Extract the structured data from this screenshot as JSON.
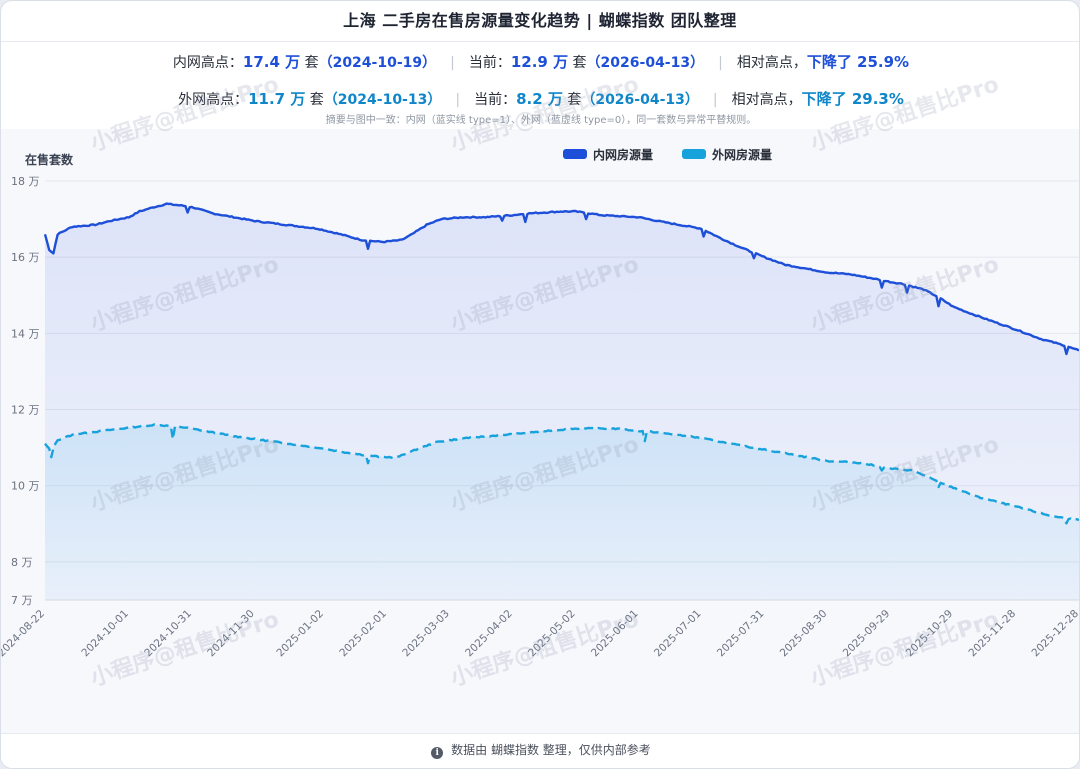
{
  "title": "上海 二手房在售房源量变化趋势 | 蝴蝶指数 团队整理",
  "summary": {
    "inner": {
      "high_label": "内网高点：",
      "high_value": "17.4 万",
      "unit": "套",
      "high_date": "（2024-10-19）",
      "current_label": "当前：",
      "current_value": "12.9 万",
      "current_date": "（2026-04-13）",
      "relative_label": "相对高点，",
      "relative_value": "下降了 25.9%"
    },
    "outer": {
      "high_label": "外网高点：",
      "high_value": "11.7 万",
      "unit": "套",
      "high_date": "（2024-10-13）",
      "current_label": "当前：",
      "current_value": "8.2 万",
      "current_date": "（2026-04-13）",
      "relative_label": "相对高点，",
      "relative_value": "下降了 29.3%"
    },
    "note": "摘要与图中一致：内网（蓝实线 type=1）、外网（蓝虚线 type=0），同一套数与异常平替规则。"
  },
  "watermark": "小程序@租售比Pro",
  "footer": {
    "text": "数据由 蝴蝶指数 整理，仅供内部参考"
  },
  "colors": {
    "inner": "#1d4fd8",
    "outer": "#17a2dc"
  },
  "chart_data": {
    "type": "line",
    "ylabel": "在售套数",
    "ylim": [
      7,
      18
    ],
    "yticks": [
      {
        "v": 18,
        "label": "18 万"
      },
      {
        "v": 16,
        "label": "16 万"
      },
      {
        "v": 14,
        "label": "14 万"
      },
      {
        "v": 12,
        "label": "12 万"
      },
      {
        "v": 10,
        "label": "10 万"
      },
      {
        "v": 8,
        "label": "8 万"
      },
      {
        "v": 7,
        "label": "7 万"
      }
    ],
    "xlim": [
      "2024-08-22",
      "2025-12-28"
    ],
    "xticks": [
      "2024-08-22",
      "2024-10-01",
      "2024-10-31",
      "2024-11-30",
      "2025-01-02",
      "2025-02-01",
      "2025-03-03",
      "2025-04-02",
      "2025-05-02",
      "2025-06-01",
      "2025-07-01",
      "2025-07-31",
      "2025-08-30",
      "2025-09-29",
      "2025-10-29",
      "2025-11-28",
      "2025-12-28"
    ],
    "legend": "top-center",
    "series": [
      {
        "name": "内网房源量",
        "style": "solid",
        "points": [
          [
            "2024-08-22",
            16.6
          ],
          [
            "2024-08-24",
            16.2
          ],
          [
            "2024-08-26",
            16.1
          ],
          [
            "2024-08-28",
            16.6
          ],
          [
            "2024-09-04",
            16.8
          ],
          [
            "2024-09-15",
            16.85
          ],
          [
            "2024-09-22",
            16.95
          ],
          [
            "2024-10-01",
            17.05
          ],
          [
            "2024-10-06",
            17.2
          ],
          [
            "2024-10-12",
            17.3
          ],
          [
            "2024-10-19",
            17.4
          ],
          [
            "2024-10-27",
            17.35
          ],
          [
            "2024-11-01",
            17.3
          ],
          [
            "2024-11-10",
            17.15
          ],
          [
            "2024-11-20",
            17.05
          ],
          [
            "2024-11-30",
            16.95
          ],
          [
            "2024-12-15",
            16.85
          ],
          [
            "2024-12-30",
            16.75
          ],
          [
            "2025-01-10",
            16.6
          ],
          [
            "2025-01-20",
            16.45
          ],
          [
            "2025-01-30",
            16.4
          ],
          [
            "2025-02-08",
            16.45
          ],
          [
            "2025-02-13",
            16.6
          ],
          [
            "2025-02-20",
            16.85
          ],
          [
            "2025-02-27",
            17.0
          ],
          [
            "2025-03-10",
            17.05
          ],
          [
            "2025-03-20",
            17.05
          ],
          [
            "2025-04-01",
            17.1
          ],
          [
            "2025-04-10",
            17.15
          ],
          [
            "2025-04-25",
            17.2
          ],
          [
            "2025-05-02",
            17.2
          ],
          [
            "2025-05-15",
            17.1
          ],
          [
            "2025-06-01",
            17.05
          ],
          [
            "2025-06-15",
            16.9
          ],
          [
            "2025-07-01",
            16.75
          ],
          [
            "2025-07-10",
            16.5
          ],
          [
            "2025-07-20",
            16.25
          ],
          [
            "2025-07-31",
            16.0
          ],
          [
            "2025-08-10",
            15.8
          ],
          [
            "2025-08-20",
            15.7
          ],
          [
            "2025-08-30",
            15.6
          ],
          [
            "2025-09-10",
            15.55
          ],
          [
            "2025-09-20",
            15.45
          ],
          [
            "2025-09-29",
            15.35
          ],
          [
            "2025-10-05",
            15.3
          ],
          [
            "2025-10-15",
            15.15
          ],
          [
            "2025-10-22",
            14.95
          ],
          [
            "2025-10-29",
            14.7
          ],
          [
            "2025-11-05",
            14.55
          ],
          [
            "2025-11-15",
            14.35
          ],
          [
            "2025-11-28",
            14.1
          ],
          [
            "2025-12-10",
            13.85
          ],
          [
            "2025-12-20",
            13.7
          ],
          [
            "2025-12-28",
            13.55
          ]
        ]
      },
      {
        "name": "外网房源量",
        "style": "dashed",
        "points": [
          [
            "2024-08-22",
            11.1
          ],
          [
            "2024-08-25",
            10.9
          ],
          [
            "2024-08-28",
            11.2
          ],
          [
            "2024-09-05",
            11.35
          ],
          [
            "2024-09-20",
            11.45
          ],
          [
            "2024-10-05",
            11.55
          ],
          [
            "2024-10-13",
            11.6
          ],
          [
            "2024-10-25",
            11.55
          ],
          [
            "2024-11-05",
            11.45
          ],
          [
            "2024-11-20",
            11.3
          ],
          [
            "2024-12-10",
            11.15
          ],
          [
            "2024-12-30",
            11.0
          ],
          [
            "2025-01-15",
            10.85
          ],
          [
            "2025-01-30",
            10.75
          ],
          [
            "2025-02-06",
            10.75
          ],
          [
            "2025-02-15",
            10.95
          ],
          [
            "2025-02-25",
            11.15
          ],
          [
            "2025-03-10",
            11.25
          ],
          [
            "2025-04-01",
            11.35
          ],
          [
            "2025-04-20",
            11.45
          ],
          [
            "2025-05-02",
            11.5
          ],
          [
            "2025-05-20",
            11.5
          ],
          [
            "2025-06-10",
            11.4
          ],
          [
            "2025-07-01",
            11.25
          ],
          [
            "2025-07-20",
            11.05
          ],
          [
            "2025-07-31",
            10.95
          ],
          [
            "2025-08-15",
            10.8
          ],
          [
            "2025-08-30",
            10.65
          ],
          [
            "2025-09-15",
            10.6
          ],
          [
            "2025-09-29",
            10.45
          ],
          [
            "2025-10-10",
            10.4
          ],
          [
            "2025-10-20",
            10.15
          ],
          [
            "2025-10-29",
            9.95
          ],
          [
            "2025-11-10",
            9.7
          ],
          [
            "2025-11-28",
            9.45
          ],
          [
            "2025-12-15",
            9.2
          ],
          [
            "2025-12-28",
            9.1
          ]
        ]
      }
    ]
  }
}
